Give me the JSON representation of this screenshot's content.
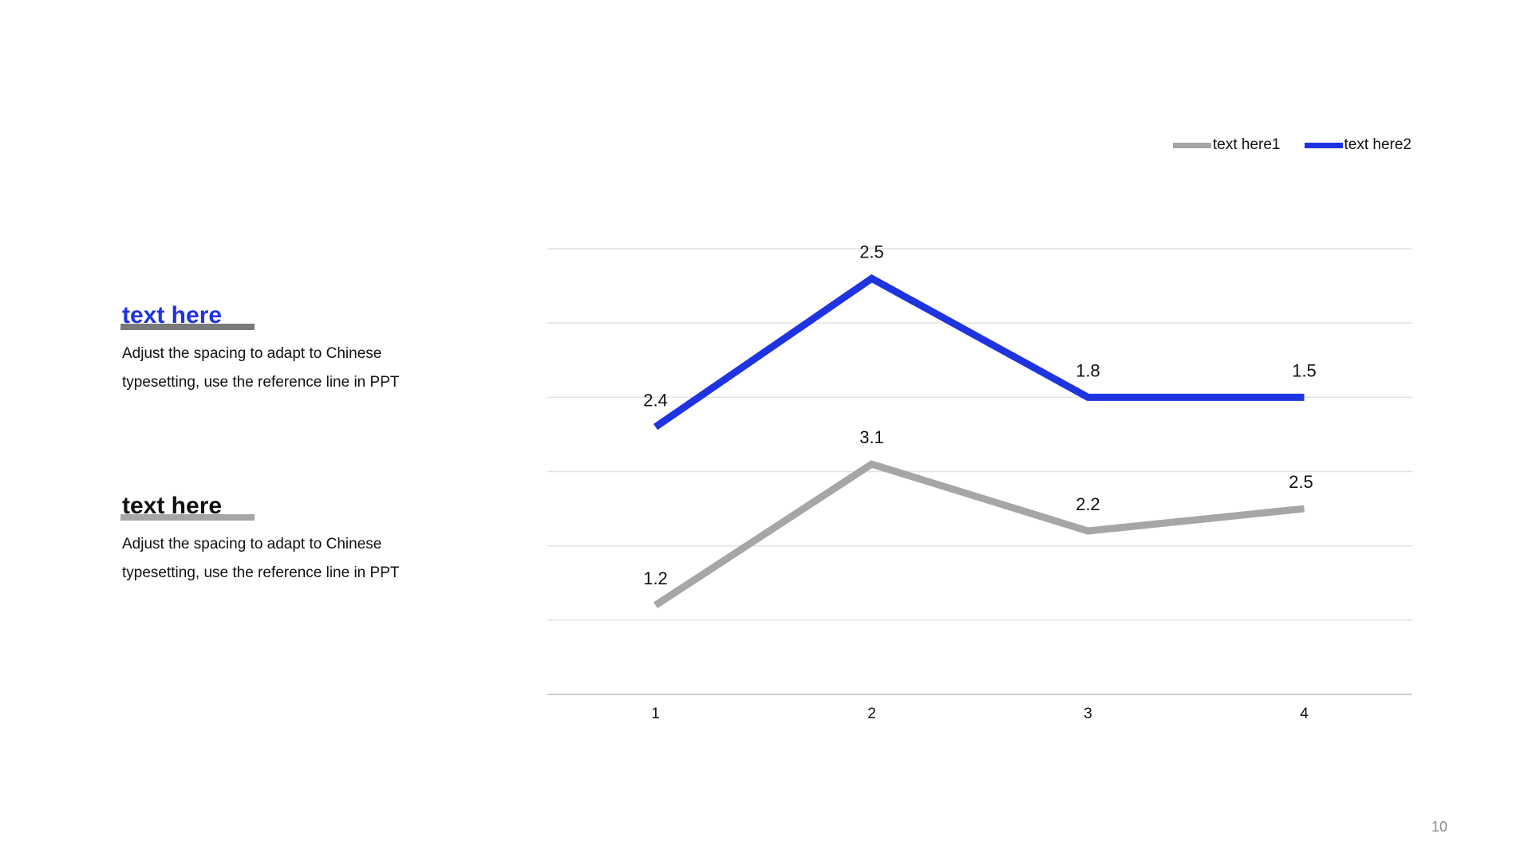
{
  "blocks": [
    {
      "title": "text here",
      "title_color": "#1f33e0",
      "body": "Adjust the spacing to adapt to Chinese typesetting, use the reference line in PPT"
    },
    {
      "title": "text here",
      "title_color": "#111111",
      "body": "Adjust the spacing to adapt to Chinese typesetting, use the reference line in PPT"
    }
  ],
  "page_number": "10",
  "chart_data": {
    "type": "line",
    "categories": [
      "1",
      "2",
      "3",
      "4"
    ],
    "series": [
      {
        "name": "text here1",
        "values": [
          1.2,
          3.1,
          2.2,
          2.5
        ],
        "color": "#a6a6a6"
      },
      {
        "name": "text here2",
        "values": [
          2.4,
          2.5,
          1.8,
          1.5
        ],
        "color": "#1f33e0"
      }
    ],
    "title": "",
    "xlabel": "",
    "ylabel": "",
    "y_axis_labels_visible": false,
    "grid": true,
    "legend_position": "top-right"
  }
}
